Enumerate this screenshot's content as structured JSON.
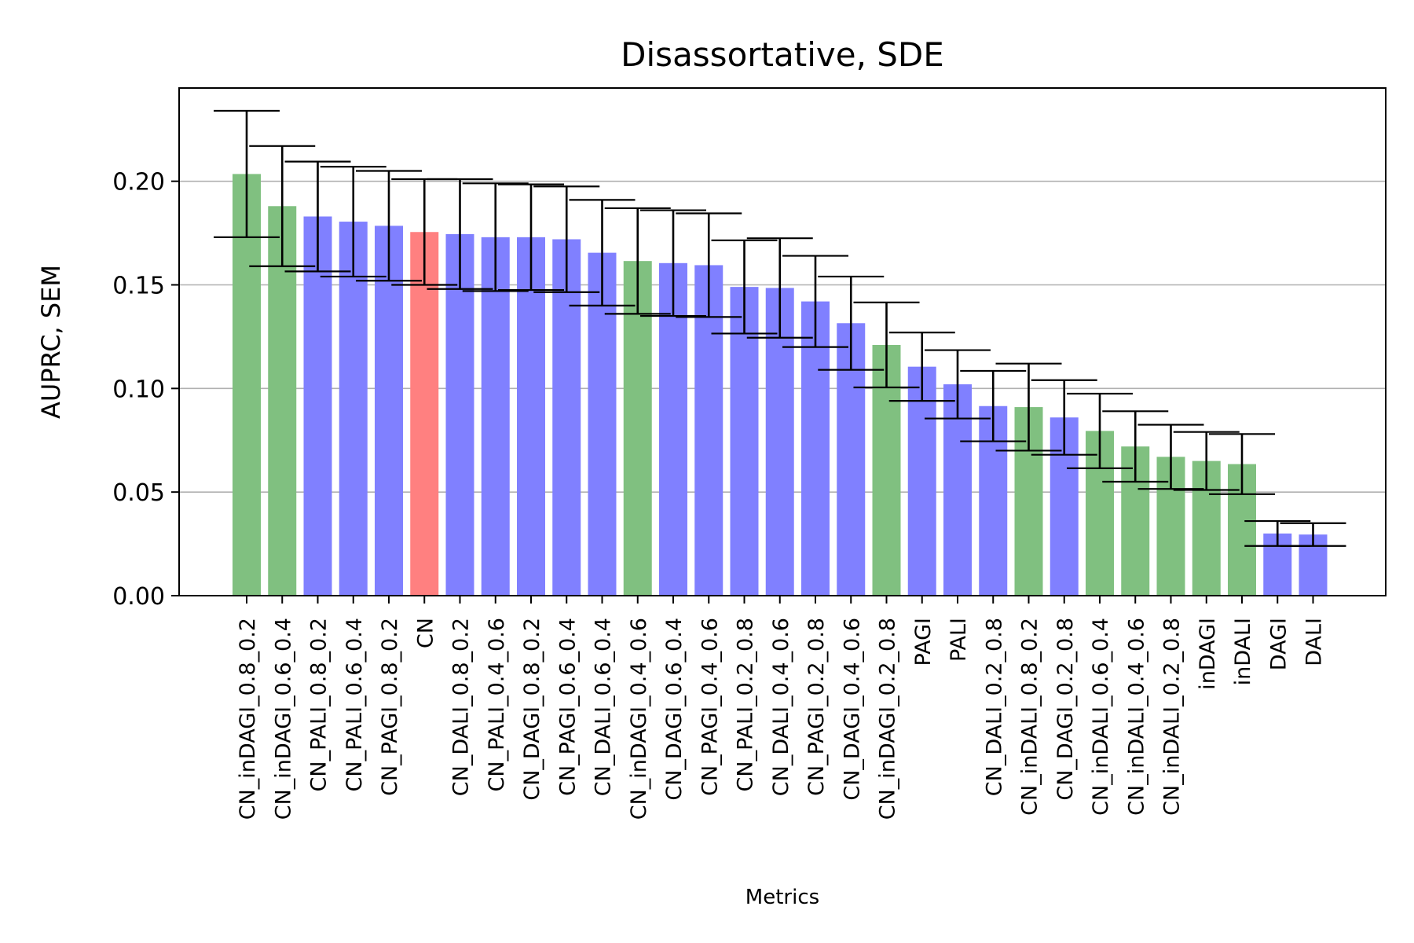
{
  "chart_data": {
    "type": "bar",
    "title": "Disassortative, SDE",
    "xlabel": "Metrics",
    "ylabel": "AUPRC, SEM",
    "ylim": [
      0,
      0.245
    ],
    "yticks": [
      "0.00",
      "0.05",
      "0.10",
      "0.15",
      "0.20"
    ],
    "grid": "y-major",
    "colors": {
      "green": "#80c080",
      "blue": "#8080ff",
      "red": "#ff8080"
    },
    "categories": [
      "CN_inDAGI_0.8_0.2",
      "CN_inDAGI_0.6_0.4",
      "CN_PALI_0.8_0.2",
      "CN_PALI_0.6_0.4",
      "CN_PAGI_0.8_0.2",
      "CN",
      "CN_DALI_0.8_0.2",
      "CN_PALI_0.4_0.6",
      "CN_DAGI_0.8_0.2",
      "CN_PAGI_0.6_0.4",
      "CN_DALI_0.6_0.4",
      "CN_inDAGI_0.4_0.6",
      "CN_DAGI_0.6_0.4",
      "CN_PAGI_0.4_0.6",
      "CN_PALI_0.2_0.8",
      "CN_DALI_0.4_0.6",
      "CN_PAGI_0.2_0.8",
      "CN_DAGI_0.4_0.6",
      "CN_inDAGI_0.2_0.8",
      "PAGI",
      "PALI",
      "CN_DALI_0.2_0.8",
      "CN_inDALI_0.8_0.2",
      "CN_DAGI_0.2_0.8",
      "CN_inDALI_0.6_0.4",
      "CN_inDALI_0.4_0.6",
      "CN_inDALI_0.2_0.8",
      "inDAGI",
      "inDALI",
      "DAGI",
      "DALI"
    ],
    "values": [
      0.2035,
      0.188,
      0.183,
      0.1805,
      0.1785,
      0.1755,
      0.1745,
      0.173,
      0.173,
      0.172,
      0.1655,
      0.1615,
      0.1605,
      0.1595,
      0.149,
      0.1485,
      0.142,
      0.1315,
      0.121,
      0.1105,
      0.102,
      0.0915,
      0.091,
      0.086,
      0.0795,
      0.072,
      0.067,
      0.065,
      0.0635,
      0.03,
      0.0295
    ],
    "errors": [
      0.0305,
      0.029,
      0.0265,
      0.0265,
      0.0265,
      0.0255,
      0.0265,
      0.026,
      0.0255,
      0.0255,
      0.0255,
      0.0255,
      0.0255,
      0.025,
      0.0225,
      0.024,
      0.022,
      0.0225,
      0.0205,
      0.0165,
      0.0165,
      0.017,
      0.021,
      0.018,
      0.018,
      0.017,
      0.0155,
      0.014,
      0.0145,
      0.006,
      0.0055
    ],
    "bar_colors": [
      "green",
      "green",
      "blue",
      "blue",
      "blue",
      "red",
      "blue",
      "blue",
      "blue",
      "blue",
      "blue",
      "green",
      "blue",
      "blue",
      "blue",
      "blue",
      "blue",
      "blue",
      "green",
      "blue",
      "blue",
      "blue",
      "green",
      "blue",
      "green",
      "green",
      "green",
      "green",
      "green",
      "blue",
      "blue"
    ]
  }
}
